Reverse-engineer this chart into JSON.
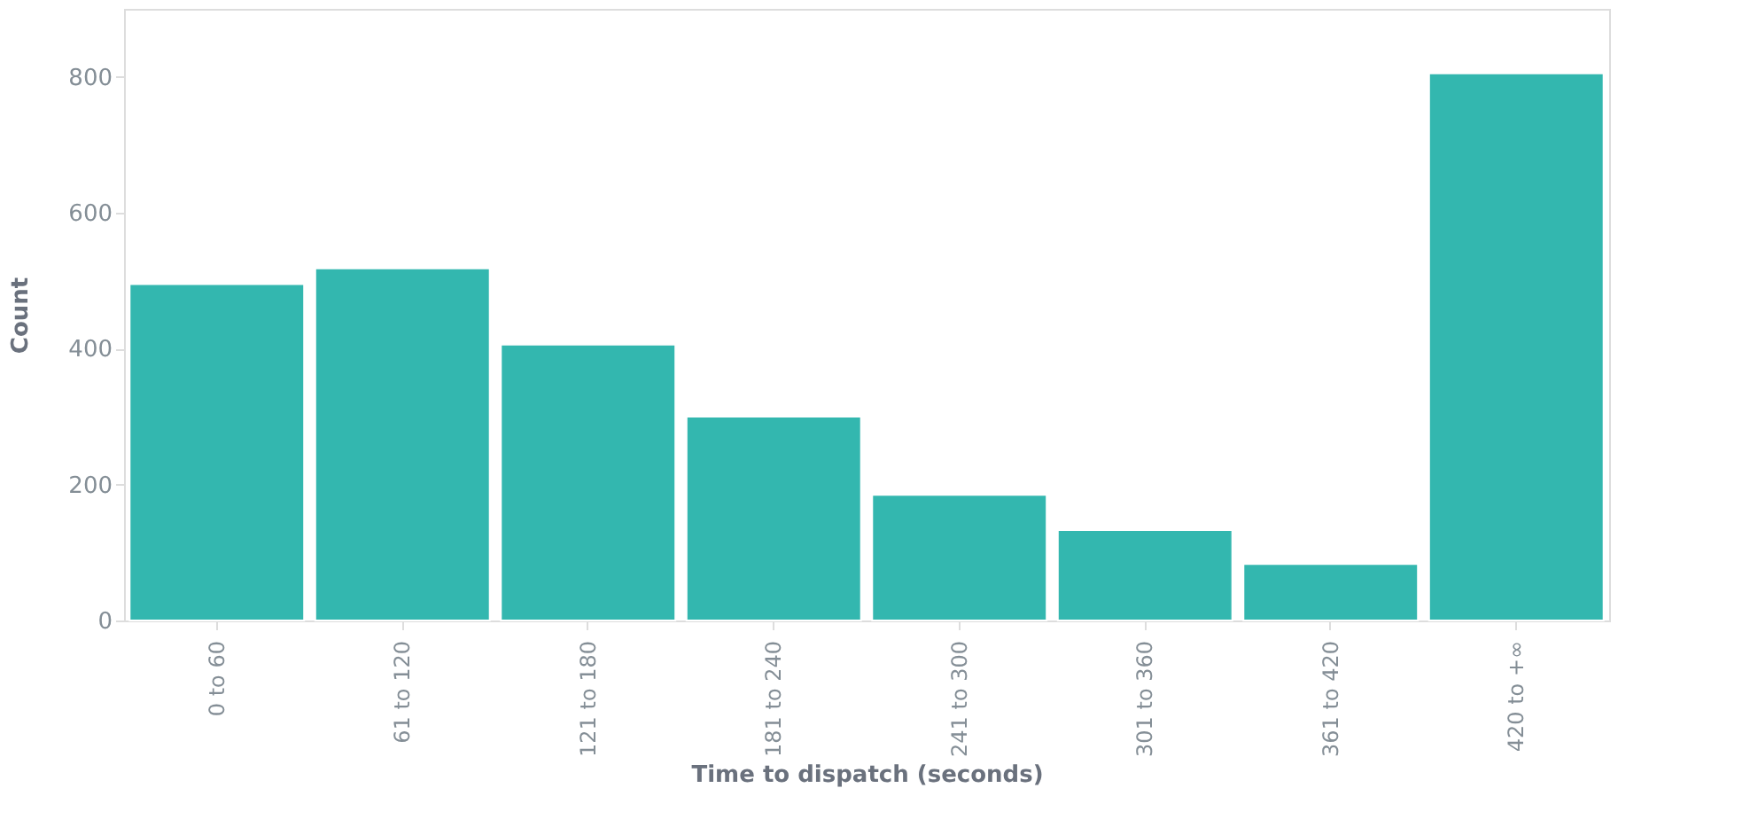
{
  "chart_data": {
    "type": "bar",
    "xlabel": "Time to dispatch (seconds)",
    "ylabel": "Count",
    "categories": [
      "0 to 60",
      "61 to 120",
      "121 to 180",
      "181 to 240",
      "241 to 300",
      "301 to 360",
      "361 to 420",
      "420 to +∞"
    ],
    "values": [
      495,
      518,
      406,
      300,
      185,
      133,
      83,
      805
    ],
    "color": "#33b7af",
    "ylim": [
      0,
      900
    ],
    "yticks": [
      0,
      200,
      400,
      600,
      800
    ],
    "grid": false
  }
}
